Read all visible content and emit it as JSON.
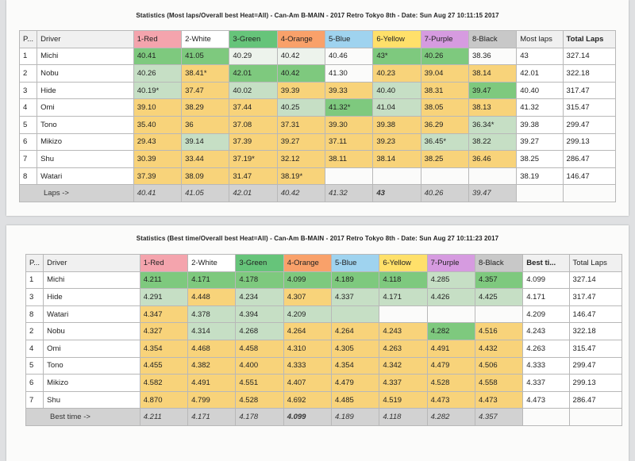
{
  "colors": {
    "red": "#f4a4ad",
    "white": "#ffffff",
    "green": "#66c47a",
    "orange": "#f9a16a",
    "blue": "#9fd3ef",
    "yellow": "#ffe06a",
    "purple": "#d69be0",
    "black": "#c8c8c8",
    "best": "#7ec97e",
    "good": "#c6dfc5",
    "mid": "#f8d37a"
  },
  "table1": {
    "title": "Statistics (Most laps/Overall best Heat=All) - Can-Am B-MAIN - 2017 Retro Tokyo 8th - Date: Sun Aug 27 10:11:15 2017",
    "headers": [
      "P...",
      "Driver",
      "1-Red",
      "2-White",
      "3-Green",
      "4-Orange",
      "5-Blue",
      "6-Yellow",
      "7-Purple",
      "8-Black",
      "Most laps",
      "Total Laps"
    ],
    "rows": [
      {
        "pos": "1",
        "driver": "Michi",
        "cells": [
          "40.41",
          "41.05",
          "40.29",
          "40.42",
          "40.46",
          "43*",
          "40.26",
          "38.36"
        ],
        "most": "43",
        "total": "327.14"
      },
      {
        "pos": "2",
        "driver": "Nobu",
        "cells": [
          "40.26",
          "38.41*",
          "42.01",
          "40.42",
          "41.30",
          "40.23",
          "39.04",
          "38.14"
        ],
        "most": "42.01",
        "total": "322.18"
      },
      {
        "pos": "3",
        "driver": "Hide",
        "cells": [
          "40.19*",
          "37.47",
          "40.02",
          "39.39",
          "39.33",
          "40.40",
          "38.31",
          "39.47"
        ],
        "most": "40.40",
        "total": "317.47"
      },
      {
        "pos": "4",
        "driver": "Omi",
        "cells": [
          "39.10",
          "38.29",
          "37.44",
          "40.25",
          "41.32*",
          "41.04",
          "38.05",
          "38.13"
        ],
        "most": "41.32",
        "total": "315.47"
      },
      {
        "pos": "5",
        "driver": "Tono",
        "cells": [
          "35.40",
          "36",
          "37.08",
          "37.31",
          "39.30",
          "39.38",
          "36.29",
          "36.34*"
        ],
        "most": "39.38",
        "total": "299.47"
      },
      {
        "pos": "6",
        "driver": "Mikizo",
        "cells": [
          "29.43",
          "39.14",
          "37.39",
          "39.27",
          "37.11",
          "39.23",
          "36.45*",
          "38.22"
        ],
        "most": "39.27",
        "total": "299.13"
      },
      {
        "pos": "7",
        "driver": "Shu",
        "cells": [
          "30.39",
          "33.44",
          "37.19*",
          "32.12",
          "38.11",
          "38.14",
          "38.25",
          "36.46"
        ],
        "most": "38.25",
        "total": "286.47"
      },
      {
        "pos": "8",
        "driver": "Watari",
        "cells": [
          "37.39",
          "38.09",
          "31.47",
          "38.19*",
          "",
          "",
          "",
          ""
        ],
        "most": "38.19",
        "total": "146.47"
      }
    ],
    "footer": {
      "label": "Laps ->",
      "cells": [
        "40.41",
        "41.05",
        "42.01",
        "40.42",
        "41.32",
        "43",
        "40.26",
        "39.47"
      ]
    }
  },
  "table2": {
    "title": "Statistics (Best time/Overall best Heat=All) - Can-Am B-MAIN - 2017 Retro Tokyo 8th - Date: Sun Aug 27 10:11:23 2017",
    "headers": [
      "P...",
      "Driver",
      "1-Red",
      "2-White",
      "3-Green",
      "4-Orange",
      "5-Blue",
      "6-Yellow",
      "7-Purple",
      "8-Black",
      "Best ti...",
      "Total Laps"
    ],
    "rows": [
      {
        "pos": "1",
        "driver": "Michi",
        "cells": [
          "4.211",
          "4.171",
          "4.178",
          "4.099",
          "4.189",
          "4.118",
          "4.285",
          "4.357"
        ],
        "best": "4.099",
        "total": "327.14"
      },
      {
        "pos": "3",
        "driver": "Hide",
        "cells": [
          "4.291",
          "4.448",
          "4.234",
          "4.307",
          "4.337",
          "4.171",
          "4.426",
          "4.425"
        ],
        "best": "4.171",
        "total": "317.47"
      },
      {
        "pos": "8",
        "driver": "Watari",
        "cells": [
          "4.347",
          "4.378",
          "4.394",
          "4.209",
          "",
          "",
          "",
          ""
        ],
        "best": "4.209",
        "total": "146.47"
      },
      {
        "pos": "2",
        "driver": "Nobu",
        "cells": [
          "4.327",
          "4.314",
          "4.268",
          "4.264",
          "4.264",
          "4.243",
          "4.282",
          "4.516"
        ],
        "best": "4.243",
        "total": "322.18"
      },
      {
        "pos": "4",
        "driver": "Omi",
        "cells": [
          "4.354",
          "4.468",
          "4.458",
          "4.310",
          "4.305",
          "4.263",
          "4.491",
          "4.432"
        ],
        "best": "4.263",
        "total": "315.47"
      },
      {
        "pos": "5",
        "driver": "Tono",
        "cells": [
          "4.455",
          "4.382",
          "4.400",
          "4.333",
          "4.354",
          "4.342",
          "4.479",
          "4.506"
        ],
        "best": "4.333",
        "total": "299.47"
      },
      {
        "pos": "6",
        "driver": "Mikizo",
        "cells": [
          "4.582",
          "4.491",
          "4.551",
          "4.407",
          "4.479",
          "4.337",
          "4.528",
          "4.558"
        ],
        "best": "4.337",
        "total": "299.13"
      },
      {
        "pos": "7",
        "driver": "Shu",
        "cells": [
          "4.870",
          "4.799",
          "4.528",
          "4.692",
          "4.485",
          "4.519",
          "4.473",
          "4.473"
        ],
        "best": "4.473",
        "total": "286.47"
      }
    ],
    "footer": {
      "label": "Best time ->",
      "cells": [
        "4.211",
        "4.171",
        "4.178",
        "4.099",
        "4.189",
        "4.118",
        "4.282",
        "4.357"
      ]
    }
  }
}
